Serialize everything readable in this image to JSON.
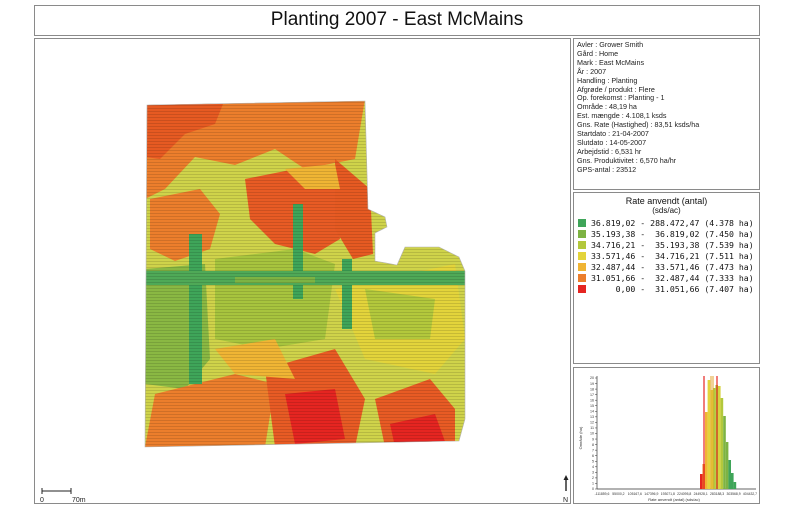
{
  "title": "Planting 2007 - East McMains",
  "info": [
    "Avler : Grower Smith",
    "Gård : Home",
    "Mark : East McMains",
    "År : 2007",
    "Handling : Planting",
    "Afgrøde / produkt : Flere",
    "Op. forekomst : Planting - 1",
    "Område : 48,19 ha",
    "Est. mængde : 4.108,1 ksds",
    "Gns. Rate (Hastighed) : 83,51 ksds/ha",
    "Startdato : 21-04-2007",
    "Slutdato : 14-05-2007",
    "Arbejdstid : 6,531 hr",
    "Gns. Produktivitet : 6,570 ha/hr",
    "GPS-antal : 23512"
  ],
  "legend": {
    "title": "Rate anvendt (antal)",
    "subtitle": "(sds/ac)",
    "entries": [
      {
        "text": "36.819,02 - 288.472,47 (4.378 ha)",
        "color": "#3fa559"
      },
      {
        "text": "35.193,38 -  36.819,02 (7.450 ha)",
        "color": "#7db343"
      },
      {
        "text": "34.716,21 -  35.193,38 (7.539 ha)",
        "color": "#b3c83c"
      },
      {
        "text": "33.571,46 -  34.716,21 (7.511 ha)",
        "color": "#e3d43b"
      },
      {
        "text": "32.487,44 -  33.571,46 (7.473 ha)",
        "color": "#f0b534"
      },
      {
        "text": "31.051,66 -  32.487,44 (7.333 ha)",
        "color": "#ec7e2c"
      },
      {
        "text": "     0,00 -  31.051,66 (7.407 ha)",
        "color": "#e52521"
      }
    ]
  },
  "scale": {
    "zero": "0",
    "distance": "70m"
  },
  "north": "N",
  "histogram": {
    "ylabel": "Område (ha)",
    "xlabel": "Rate anvendt (antal) (sds/ac)",
    "yticks": [
      "0",
      "1",
      "2",
      "3",
      "4",
      "5",
      "6",
      "7",
      "8",
      "9",
      "10",
      "11",
      "12",
      "13",
      "14",
      "15",
      "16",
      "17",
      "18",
      "19",
      "20"
    ],
    "xticks": [
      "-111859,6",
      "55000,2",
      "105167,6",
      "147396,9",
      "193071,8",
      "224095,8",
      "244928,1",
      "283188,3",
      "303568,9",
      "404432,7"
    ]
  }
}
